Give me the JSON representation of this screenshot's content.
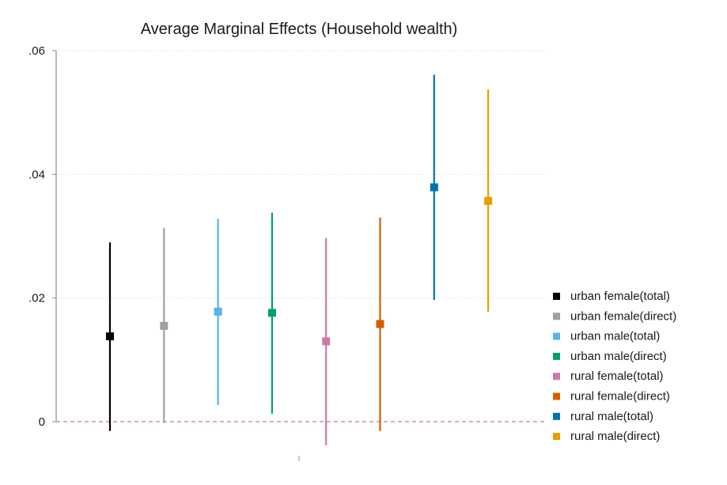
{
  "chart_data": {
    "type": "scatter",
    "title": "Average Marginal Effects (Household wealth)",
    "xlabel": "",
    "ylabel": "",
    "ylim": [
      0,
      0.06
    ],
    "yticks": [
      {
        "value": 0,
        "label": "0"
      },
      {
        "value": 0.02,
        "label": ".02"
      },
      {
        "value": 0.04,
        "label": ".04"
      },
      {
        "value": 0.06,
        "label": ".06"
      }
    ],
    "grid": true,
    "reference_line": {
      "value": 0,
      "style": "dashed",
      "color": "#c97a9c"
    },
    "legend_position": "right",
    "series": [
      {
        "name": "urban female(total)",
        "estimate": 0.0138,
        "ci": [
          -0.0015,
          0.029
        ],
        "color": "#000000"
      },
      {
        "name": "urban female(direct)",
        "estimate": 0.0155,
        "ci": [
          -0.0002,
          0.0313
        ],
        "color": "#a0a0a0"
      },
      {
        "name": "urban male(total)",
        "estimate": 0.0178,
        "ci": [
          0.0027,
          0.0328
        ],
        "color": "#56b4e9"
      },
      {
        "name": "urban male(direct)",
        "estimate": 0.0176,
        "ci": [
          0.0013,
          0.0338
        ],
        "color": "#009e73"
      },
      {
        "name": "rural female(total)",
        "estimate": 0.013,
        "ci": [
          -0.0038,
          0.0297
        ],
        "color": "#cc79a7"
      },
      {
        "name": "rural female(direct)",
        "estimate": 0.0158,
        "ci": [
          -0.0015,
          0.033
        ],
        "color": "#d55e00"
      },
      {
        "name": "rural male(total)",
        "estimate": 0.0379,
        "ci": [
          0.0197,
          0.0561
        ],
        "color": "#0072b2"
      },
      {
        "name": "rural male(direct)",
        "estimate": 0.0357,
        "ci": [
          0.0178,
          0.0537
        ],
        "color": "#e69f00"
      }
    ]
  }
}
